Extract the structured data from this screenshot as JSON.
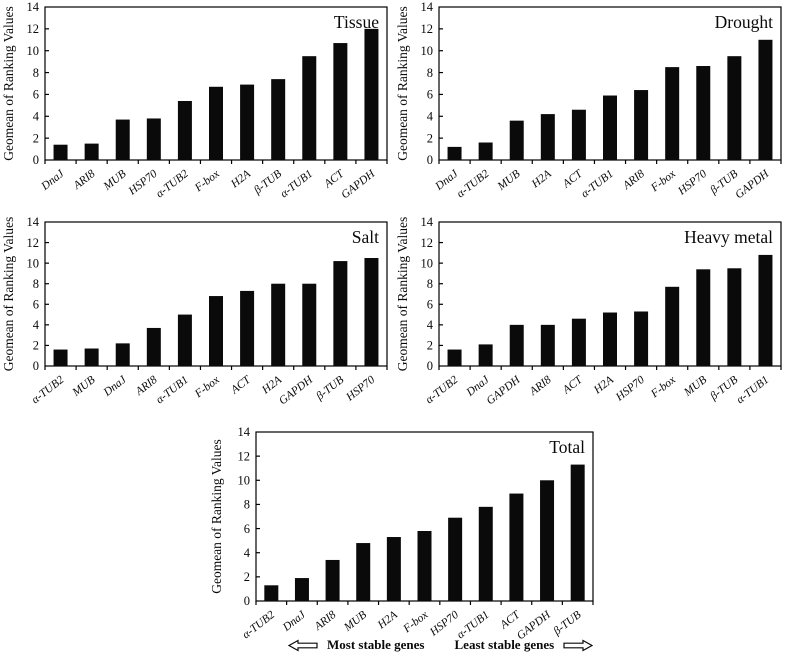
{
  "figure_title": "Gene expression stability ranking charts",
  "footer": {
    "most_stable": "Most stable genes",
    "least_stable": "Least stable genes",
    "left_arrow_icon": "hollow-left-arrow",
    "right_arrow_icon": "hollow-right-arrow"
  },
  "colors": {
    "bar": "#0a0a0a",
    "axis": "#000000",
    "background": "#ffffff"
  },
  "chart_data": [
    {
      "id": "tissue",
      "type": "bar",
      "title": "Tissue",
      "ylabel": "Geomean of Ranking Values",
      "ylim": [
        0,
        14
      ],
      "yticks": [
        0,
        2,
        4,
        6,
        8,
        10,
        12,
        14
      ],
      "grid": false,
      "categories": [
        "DnaJ",
        "ARI8",
        "MUB",
        "HSP70",
        "α-TUB2",
        "F-box",
        "H2A",
        "β-TUB",
        "α-TUB1",
        "ACT",
        "GAPDH"
      ],
      "values": [
        1.4,
        1.5,
        3.7,
        3.8,
        5.4,
        6.7,
        6.9,
        7.4,
        9.5,
        10.7,
        12.0
      ]
    },
    {
      "id": "drought",
      "type": "bar",
      "title": "Drought",
      "ylabel": "Geomean of Ranking Values",
      "ylim": [
        0,
        14
      ],
      "yticks": [
        0,
        2,
        4,
        6,
        8,
        10,
        12,
        14
      ],
      "grid": false,
      "categories": [
        "DnaJ",
        "α-TUB2",
        "MUB",
        "H2A",
        "ACT",
        "α-TUB1",
        "ARI8",
        "F-box",
        "HSP70",
        "β-TUB",
        "GAPDH"
      ],
      "values": [
        1.2,
        1.6,
        3.6,
        4.2,
        4.6,
        5.9,
        6.4,
        8.5,
        8.6,
        9.5,
        11.0
      ]
    },
    {
      "id": "salt",
      "type": "bar",
      "title": "Salt",
      "ylabel": "Geomean of Ranking Values",
      "ylim": [
        0,
        14
      ],
      "yticks": [
        0,
        2,
        4,
        6,
        8,
        10,
        12,
        14
      ],
      "grid": false,
      "categories": [
        "α-TUB2",
        "MUB",
        "DnaJ",
        "ARI8",
        "α-TUB1",
        "F-box",
        "ACT",
        "H2A",
        "GAPDH",
        "β-TUB",
        "HSP70"
      ],
      "values": [
        1.6,
        1.7,
        2.2,
        3.7,
        5.0,
        6.8,
        7.3,
        8.0,
        8.0,
        10.2,
        10.5
      ]
    },
    {
      "id": "heavy-metal",
      "type": "bar",
      "title": "Heavy metal",
      "ylabel": "Geomean of Ranking Values",
      "ylim": [
        0,
        14
      ],
      "yticks": [
        0,
        2,
        4,
        6,
        8,
        10,
        12,
        14
      ],
      "grid": false,
      "categories": [
        "α-TUB2",
        "DnaJ",
        "GAPDH",
        "ARI8",
        "ACT",
        "H2A",
        "HSP70",
        "F-box",
        "MUB",
        "β-TUB",
        "α-TUB1"
      ],
      "values": [
        1.6,
        2.1,
        4.0,
        4.0,
        4.6,
        5.2,
        5.3,
        7.7,
        9.4,
        9.5,
        10.8
      ]
    },
    {
      "id": "total",
      "type": "bar",
      "title": "Total",
      "ylabel": "Geomean of Ranking Values",
      "ylim": [
        0,
        14
      ],
      "yticks": [
        0,
        2,
        4,
        6,
        8,
        10,
        12,
        14
      ],
      "grid": false,
      "categories": [
        "α-TUB2",
        "DnaJ",
        "ARI8",
        "MUB",
        "H2A",
        "F-box",
        "HSP70",
        "α-TUB1",
        "ACT",
        "GAPDH",
        "β-TUB"
      ],
      "values": [
        1.3,
        1.9,
        3.4,
        4.8,
        5.3,
        5.8,
        6.9,
        7.8,
        8.9,
        10.0,
        11.3
      ]
    }
  ]
}
